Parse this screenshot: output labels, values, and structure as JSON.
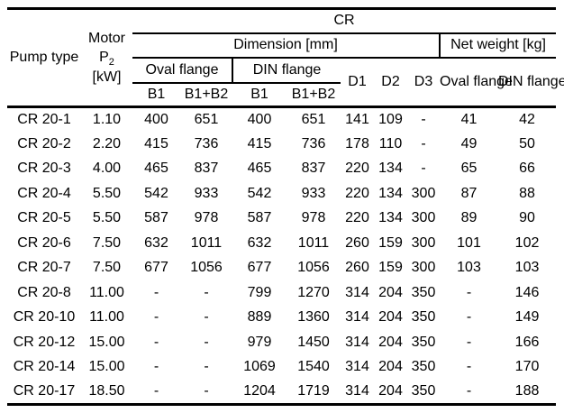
{
  "table": {
    "header": {
      "pump_type": "Pump\ntype",
      "motor_line1": "Motor",
      "motor_p": "P",
      "motor_sub": "2",
      "motor_unit": "[kW]",
      "cr": "CR",
      "dimension": "Dimension [mm]",
      "net_weight": "Net weight [kg]",
      "oval_flange_dim": "Oval flange",
      "din_flange_dim": "DIN flange",
      "b1_oval": "B1",
      "b1b2_oval": "B1+B2",
      "b1_din": "B1",
      "b1b2_din": "B1+B2",
      "d1": "D1",
      "d2": "D2",
      "d3": "D3",
      "oval_flange_weight": "Oval\nflange",
      "din_flange_weight": "DIN\nflange"
    },
    "rows": [
      {
        "pump_type": "CR 20-1",
        "values": [
          "1.10",
          "400",
          "651",
          "400",
          "651",
          "141",
          "109",
          "-",
          "41",
          "42"
        ]
      },
      {
        "pump_type": "CR 20-2",
        "values": [
          "2.20",
          "415",
          "736",
          "415",
          "736",
          "178",
          "110",
          "-",
          "49",
          "50"
        ]
      },
      {
        "pump_type": "CR 20-3",
        "values": [
          "4.00",
          "465",
          "837",
          "465",
          "837",
          "220",
          "134",
          "-",
          "65",
          "66"
        ]
      },
      {
        "pump_type": "CR 20-4",
        "values": [
          "5.50",
          "542",
          "933",
          "542",
          "933",
          "220",
          "134",
          "300",
          "87",
          "88"
        ]
      },
      {
        "pump_type": "CR 20-5",
        "values": [
          "5.50",
          "587",
          "978",
          "587",
          "978",
          "220",
          "134",
          "300",
          "89",
          "90"
        ]
      },
      {
        "pump_type": "CR 20-6",
        "values": [
          "7.50",
          "632",
          "1011",
          "632",
          "1011",
          "260",
          "159",
          "300",
          "101",
          "102"
        ]
      },
      {
        "pump_type": "CR 20-7",
        "values": [
          "7.50",
          "677",
          "1056",
          "677",
          "1056",
          "260",
          "159",
          "300",
          "103",
          "103"
        ]
      },
      {
        "pump_type": "CR 20-8",
        "values": [
          "11.00",
          "-",
          "-",
          "799",
          "1270",
          "314",
          "204",
          "350",
          "-",
          "146"
        ]
      },
      {
        "pump_type": "CR 20-10",
        "values": [
          "11.00",
          "-",
          "-",
          "889",
          "1360",
          "314",
          "204",
          "350",
          "-",
          "149"
        ]
      },
      {
        "pump_type": "CR 20-12",
        "values": [
          "15.00",
          "-",
          "-",
          "979",
          "1450",
          "314",
          "204",
          "350",
          "-",
          "166"
        ]
      },
      {
        "pump_type": "CR 20-14",
        "values": [
          "15.00",
          "-",
          "-",
          "1069",
          "1540",
          "314",
          "204",
          "350",
          "-",
          "170"
        ]
      },
      {
        "pump_type": "CR 20-17",
        "values": [
          "18.50",
          "-",
          "-",
          "1204",
          "1719",
          "314",
          "204",
          "350",
          "-",
          "188"
        ]
      }
    ]
  }
}
